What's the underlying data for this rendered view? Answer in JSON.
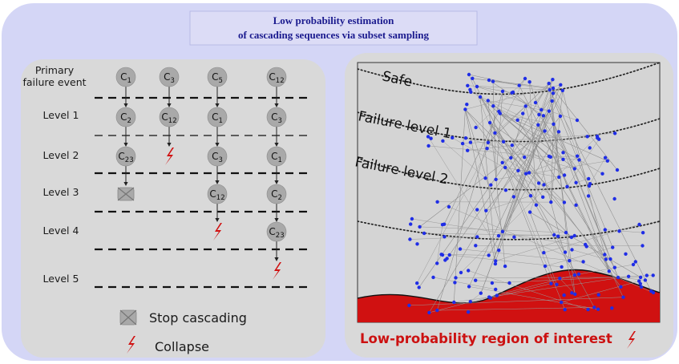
{
  "title": {
    "line1": "Low probability estimation",
    "line2": "of cascading sequences  via subset sampling"
  },
  "left_panel": {
    "primary_label_line1": "Primary",
    "primary_label_line2": "failure event",
    "levels": [
      "Level 1",
      "Level 2",
      "Level 3",
      "Level 4",
      "Level 5"
    ],
    "nodes": [
      {
        "col": 0,
        "row": 0,
        "base": "C",
        "sub": "1"
      },
      {
        "col": 1,
        "row": 0,
        "base": "C",
        "sub": "3"
      },
      {
        "col": 2,
        "row": 0,
        "base": "C",
        "sub": "5"
      },
      {
        "col": 3,
        "row": 0,
        "base": "C",
        "sub": "12"
      },
      {
        "col": 0,
        "row": 1,
        "base": "C",
        "sub": "2"
      },
      {
        "col": 1,
        "row": 1,
        "base": "C",
        "sub": "12"
      },
      {
        "col": 2,
        "row": 1,
        "base": "C",
        "sub": "1"
      },
      {
        "col": 3,
        "row": 1,
        "base": "C",
        "sub": "3"
      },
      {
        "col": 0,
        "row": 2,
        "base": "C",
        "sub": "23"
      },
      {
        "col": 2,
        "row": 2,
        "base": "C",
        "sub": "3"
      },
      {
        "col": 3,
        "row": 2,
        "base": "C",
        "sub": "1"
      },
      {
        "col": 2,
        "row": 3,
        "base": "C",
        "sub": "12"
      },
      {
        "col": 3,
        "row": 3,
        "base": "C",
        "sub": "2"
      },
      {
        "col": 3,
        "row": 4,
        "base": "C",
        "sub": "23"
      }
    ],
    "stops": [
      {
        "col": 0,
        "row": 3
      }
    ],
    "collapses": [
      {
        "col": 1,
        "row": 2
      },
      {
        "col": 2,
        "row": 4
      },
      {
        "col": 3,
        "row": 5
      }
    ],
    "legend": {
      "stop_label": "Stop cascading",
      "collapse_label": "Collapse"
    }
  },
  "right_panel": {
    "curve_labels": [
      "Safe",
      "Failure level 1",
      "Failure level 2"
    ],
    "region_label": "Low-probability region of interest"
  },
  "colors": {
    "outer_bg": "#d4d6f6",
    "panel_bg": "#d9d9d9",
    "node_fill": "#a9a9a9",
    "point_blue": "#1f2de6",
    "failure_red": "#d01111",
    "title_text": "#1a1a8e"
  }
}
